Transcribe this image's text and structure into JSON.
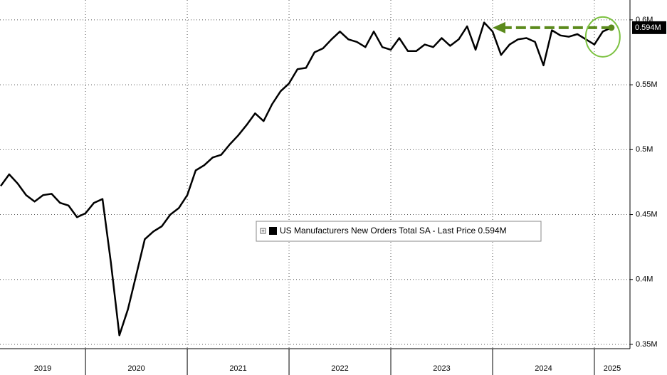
{
  "chart_data": {
    "type": "line",
    "series": [
      {
        "name": "US Manufacturers New Orders Total SA - Last Price 0.594M",
        "color": "#000000",
        "values": [
          0.472,
          0.481,
          0.474,
          0.465,
          0.46,
          0.465,
          0.466,
          0.459,
          0.457,
          0.448,
          0.451,
          0.459,
          0.462,
          0.413,
          0.357,
          0.377,
          0.404,
          0.431,
          0.437,
          0.441,
          0.45,
          0.455,
          0.465,
          0.484,
          0.488,
          0.494,
          0.496,
          0.504,
          0.511,
          0.519,
          0.528,
          0.522,
          0.535,
          0.545,
          0.551,
          0.562,
          0.563,
          0.575,
          0.578,
          0.585,
          0.591,
          0.585,
          0.583,
          0.579,
          0.591,
          0.579,
          0.577,
          0.586,
          0.576,
          0.576,
          0.581,
          0.579,
          0.586,
          0.58,
          0.585,
          0.595,
          0.577,
          0.598,
          0.591,
          0.573,
          0.581,
          0.585,
          0.586,
          0.583,
          0.565,
          0.592,
          0.588,
          0.587,
          0.589,
          0.585,
          0.581,
          0.591,
          0.594
        ]
      }
    ],
    "x": [
      2019.167,
      2019.25,
      2019.333,
      2019.417,
      2019.5,
      2019.583,
      2019.667,
      2019.75,
      2019.833,
      2019.917,
      2020,
      2020.083,
      2020.167,
      2020.25,
      2020.333,
      2020.417,
      2020.5,
      2020.583,
      2020.667,
      2020.75,
      2020.833,
      2020.917,
      2021,
      2021.083,
      2021.167,
      2021.25,
      2021.333,
      2021.417,
      2021.5,
      2021.583,
      2021.667,
      2021.75,
      2021.833,
      2021.917,
      2022,
      2022.083,
      2022.167,
      2022.25,
      2022.333,
      2022.417,
      2022.5,
      2022.583,
      2022.667,
      2022.75,
      2022.833,
      2022.917,
      2023,
      2023.083,
      2023.167,
      2023.25,
      2023.333,
      2023.417,
      2023.5,
      2023.583,
      2023.667,
      2023.75,
      2023.833,
      2023.917,
      2024,
      2024.083,
      2024.167,
      2024.25,
      2024.333,
      2024.417,
      2024.5,
      2024.583,
      2024.667,
      2024.75,
      2024.833,
      2024.917,
      2025,
      2025.083,
      2025.167
    ],
    "xlim": [
      2019.16,
      2025.35
    ],
    "xticks": [
      2019,
      2020,
      2021,
      2022,
      2023,
      2024,
      2025
    ],
    "ylim": [
      0.3467,
      0.6153
    ],
    "yticks": [
      {
        "value": 0.35,
        "label": "0.35M"
      },
      {
        "value": 0.4,
        "label": "0.4M"
      },
      {
        "value": 0.45,
        "label": "0.45M"
      },
      {
        "value": 0.5,
        "label": "0.5M"
      },
      {
        "value": 0.55,
        "label": "0.55M"
      },
      {
        "value": 0.6,
        "label": "0.6M"
      }
    ],
    "grid": true,
    "annotations": [
      {
        "text": "0.594M"
      }
    ]
  }
}
